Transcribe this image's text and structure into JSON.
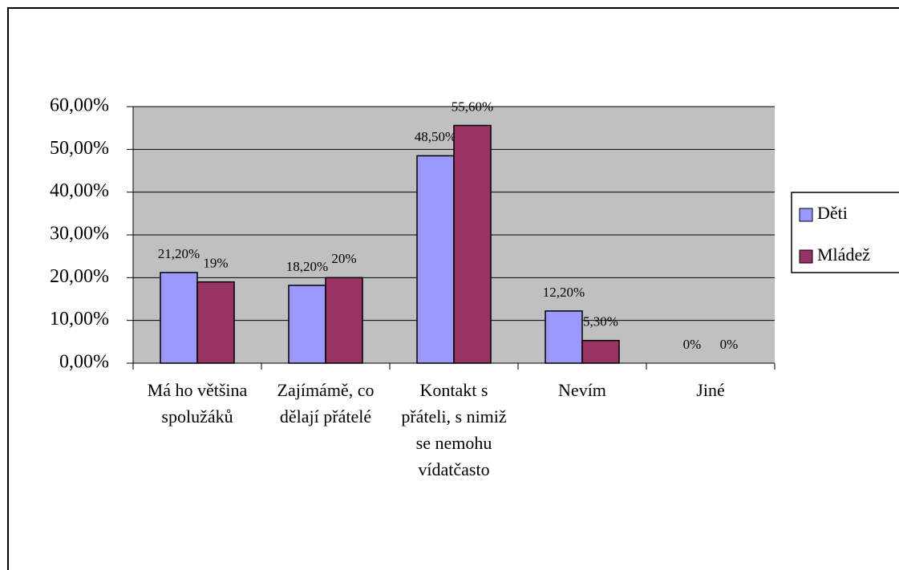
{
  "chart_data": {
    "type": "bar",
    "categories": [
      "Má ho většina spolužáků",
      "Zajímámě, co dělají přátelé",
      "Kontakt s přáteli, s nimiž se nemohu vídatčasto",
      "Nevím",
      "Jiné"
    ],
    "series": [
      {
        "name": "Děti",
        "color": "#9999ff",
        "values": [
          21.2,
          18.2,
          48.5,
          12.2,
          0
        ],
        "value_labels": [
          "21,20%",
          "18,20%",
          "48,50%",
          "12,20%",
          "0%"
        ]
      },
      {
        "name": "Mládež",
        "color": "#993366",
        "values": [
          19,
          20,
          55.6,
          5.3,
          0
        ],
        "value_labels": [
          "19%",
          "20%",
          "55,60%",
          "5,30%",
          "0%"
        ]
      }
    ],
    "ylim": [
      0,
      60
    ],
    "yticks": [
      {
        "value": 0,
        "label": "0,00%"
      },
      {
        "value": 10,
        "label": "10,00%"
      },
      {
        "value": 20,
        "label": "20,00%"
      },
      {
        "value": 30,
        "label": "30,00%"
      },
      {
        "value": 40,
        "label": "40,00%"
      },
      {
        "value": 50,
        "label": "50,00%"
      },
      {
        "value": 60,
        "label": "60,00%"
      }
    ],
    "grid": true,
    "legend": "right"
  }
}
